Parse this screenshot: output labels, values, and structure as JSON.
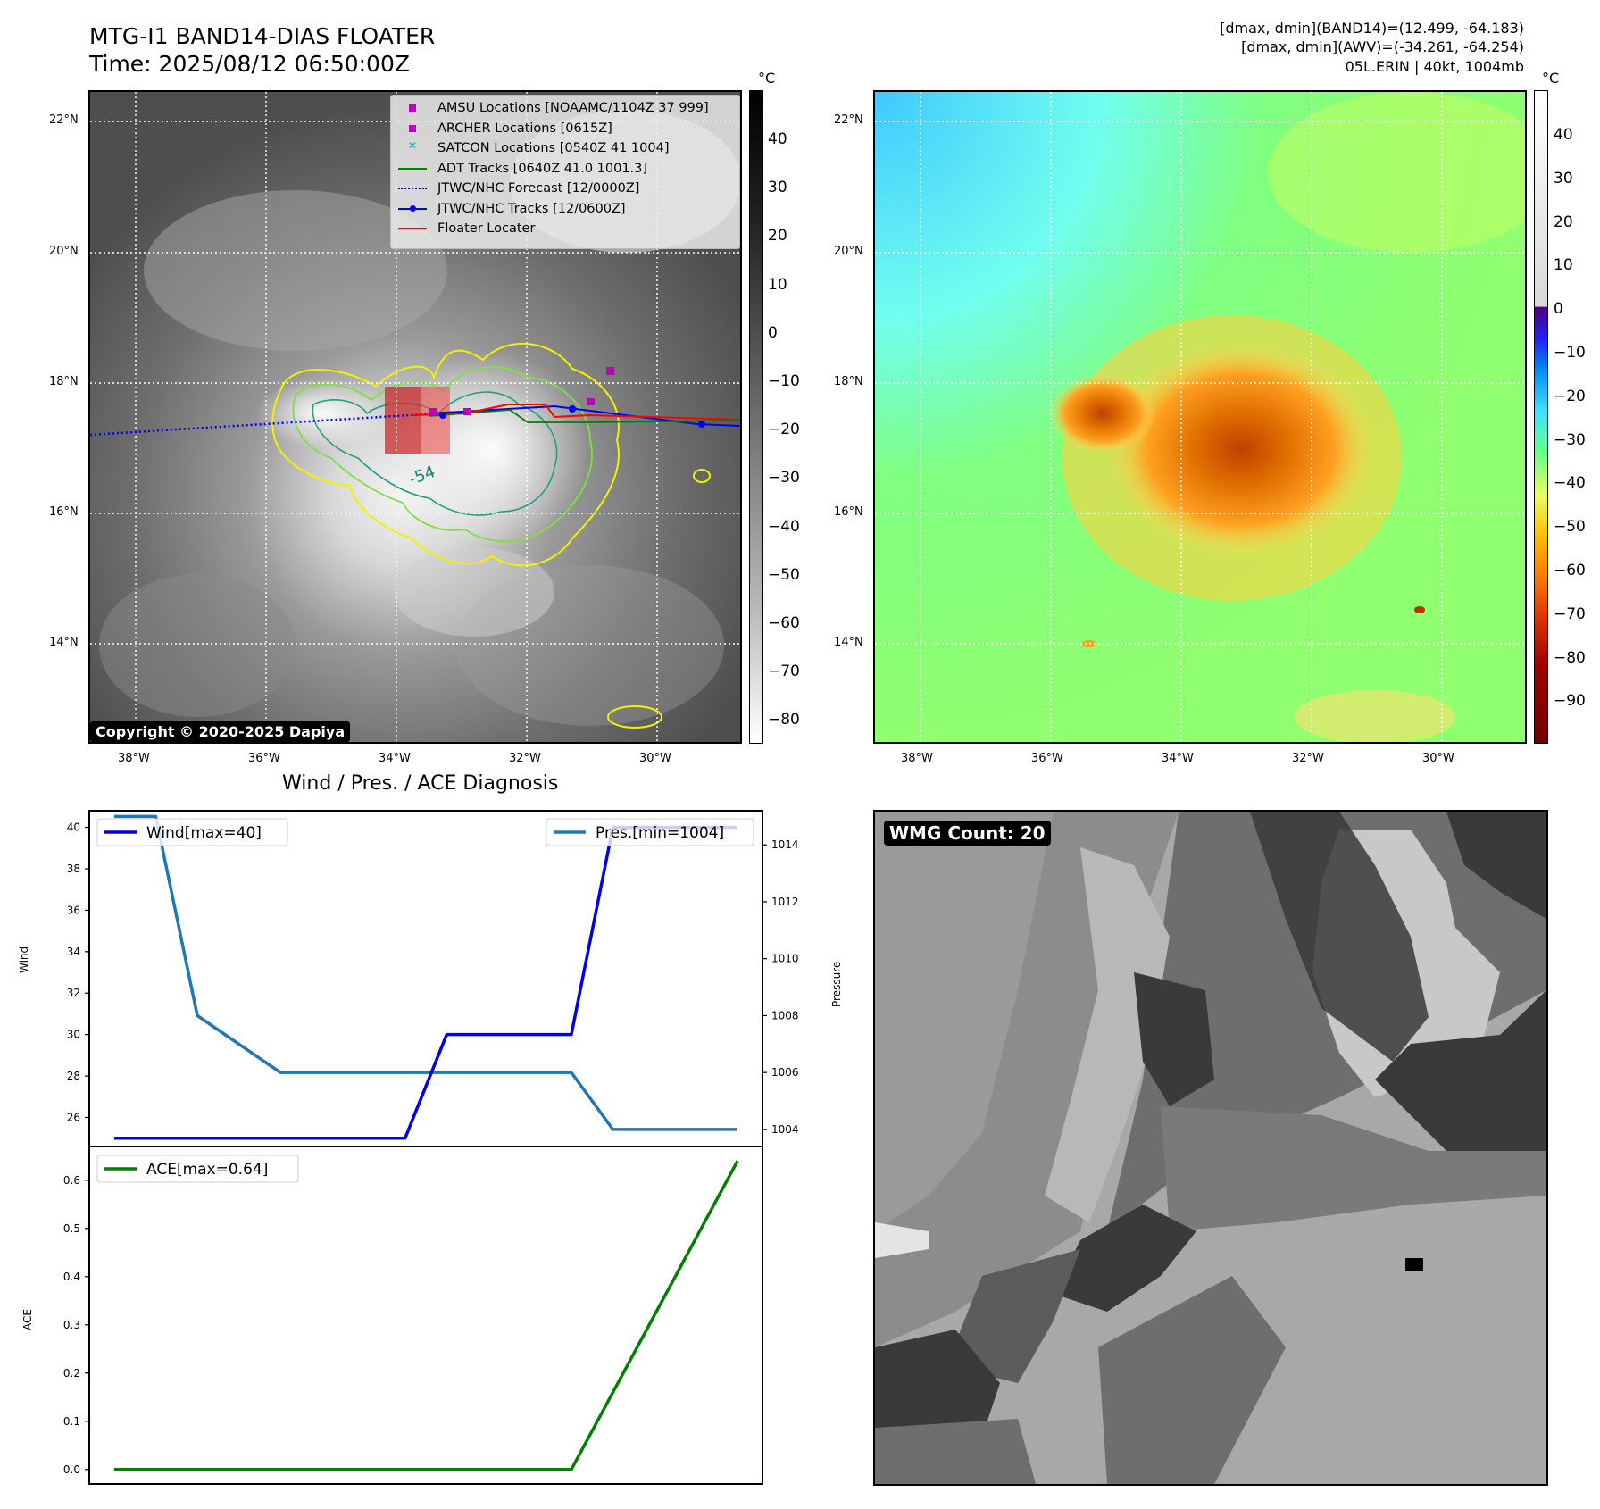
{
  "header": {
    "title": "MTG-I1 BAND14-DIAS FLOATER",
    "time": "Time: 2025/08/12 06:50:00Z",
    "right_line1": "[dmax, dmin](BAND14)=(12.499, -64.183)",
    "right_line2": "[dmax, dmin](AWV)=(-34.261, -64.254)",
    "right_line3": "05L.ERIN | 40kt, 1004mb"
  },
  "map": {
    "lat_labels": [
      "22°N",
      "20°N",
      "18°N",
      "16°N",
      "14°N"
    ],
    "lon_labels": [
      "38°W",
      "36°W",
      "34°W",
      "32°W",
      "30°W"
    ],
    "contour_label": "-54",
    "copyright": "Copyright © 2020-2025 Dapiya",
    "legend": [
      {
        "label": "AMSU Locations [NOAAMC/1104Z 37 999]",
        "color": "#c000c0",
        "marker": "square"
      },
      {
        "label": "ARCHER Locations [0615Z]",
        "color": "#c000c0",
        "marker": "square"
      },
      {
        "label": "SATCON Locations [0540Z 41 1004]",
        "color": "#00b0b0",
        "marker": "x"
      },
      {
        "label": "ADT Tracks [0640Z 41.0 1001.3]",
        "color": "#008000",
        "marker": "line"
      },
      {
        "label": "JTWC/NHC Forecast [12/0000Z]",
        "color": "#0000ff",
        "marker": "dotted"
      },
      {
        "label": "JTWC/NHC Tracks [12/0600Z]",
        "color": "#0000ff",
        "marker": "line-dot"
      },
      {
        "label": "Floater Locater",
        "color": "#ff0000",
        "marker": "line"
      }
    ]
  },
  "colorbar_gray": {
    "unit": "°C",
    "ticks": [
      "40",
      "30",
      "20",
      "10",
      "0",
      "−10",
      "−20",
      "−30",
      "−40",
      "−50",
      "−60",
      "−70",
      "−80"
    ]
  },
  "colorbar_color": {
    "unit": "°C",
    "ticks": [
      "40",
      "30",
      "20",
      "10",
      "0",
      "−10",
      "−20",
      "−30",
      "−40",
      "−50",
      "−60",
      "−70",
      "−80",
      "−90"
    ]
  },
  "chart_data": [
    {
      "type": "line",
      "title": "Wind / Pres. / ACE Diagnosis",
      "ylabel": "Wind",
      "y2label": "Pressure",
      "ylim": [
        24.6,
        40.8
      ],
      "y2lim": [
        1003.4,
        1015.2
      ],
      "y_ticks": [
        "40",
        "38",
        "36",
        "34",
        "32",
        "30",
        "28",
        "26"
      ],
      "y2_ticks": [
        "1014",
        "1012",
        "1010",
        "1008",
        "1006",
        "1004"
      ],
      "x": [
        0,
        1,
        2,
        3,
        4,
        5,
        6,
        7,
        8,
        9,
        10,
        11,
        12,
        13,
        14,
        15
      ],
      "series": [
        {
          "name": "Wind[max=40]",
          "axis": "left",
          "color": "#0000ee",
          "values": [
            25,
            25,
            25,
            25,
            25,
            25,
            25,
            25,
            30,
            30,
            30,
            30,
            40,
            40,
            40,
            40
          ]
        },
        {
          "name": "Pres.[min=1004]",
          "axis": "right",
          "color": "#1f77b4",
          "values": [
            1015,
            1015,
            1008,
            1007,
            1006,
            1006,
            1006,
            1006,
            1006,
            1006,
            1006,
            1006,
            1004,
            1004,
            1004,
            1004
          ]
        }
      ]
    },
    {
      "type": "line",
      "ylabel": "ACE",
      "ylim": [
        -0.03,
        0.67
      ],
      "y_ticks": [
        "0.6",
        "0.5",
        "0.4",
        "0.3",
        "0.2",
        "0.1",
        "0.0"
      ],
      "x": [
        0,
        1,
        2,
        3,
        4,
        5,
        6,
        7,
        8,
        9,
        10,
        11,
        12,
        13,
        14,
        15
      ],
      "series": [
        {
          "name": "ACE[max=0.64]",
          "color": "#008000",
          "values": [
            0,
            0,
            0,
            0,
            0,
            0,
            0,
            0,
            0,
            0,
            0,
            0,
            0.16,
            0.32,
            0.48,
            0.64
          ]
        }
      ]
    }
  ],
  "wmg": {
    "label": "WMG Count: 20"
  }
}
